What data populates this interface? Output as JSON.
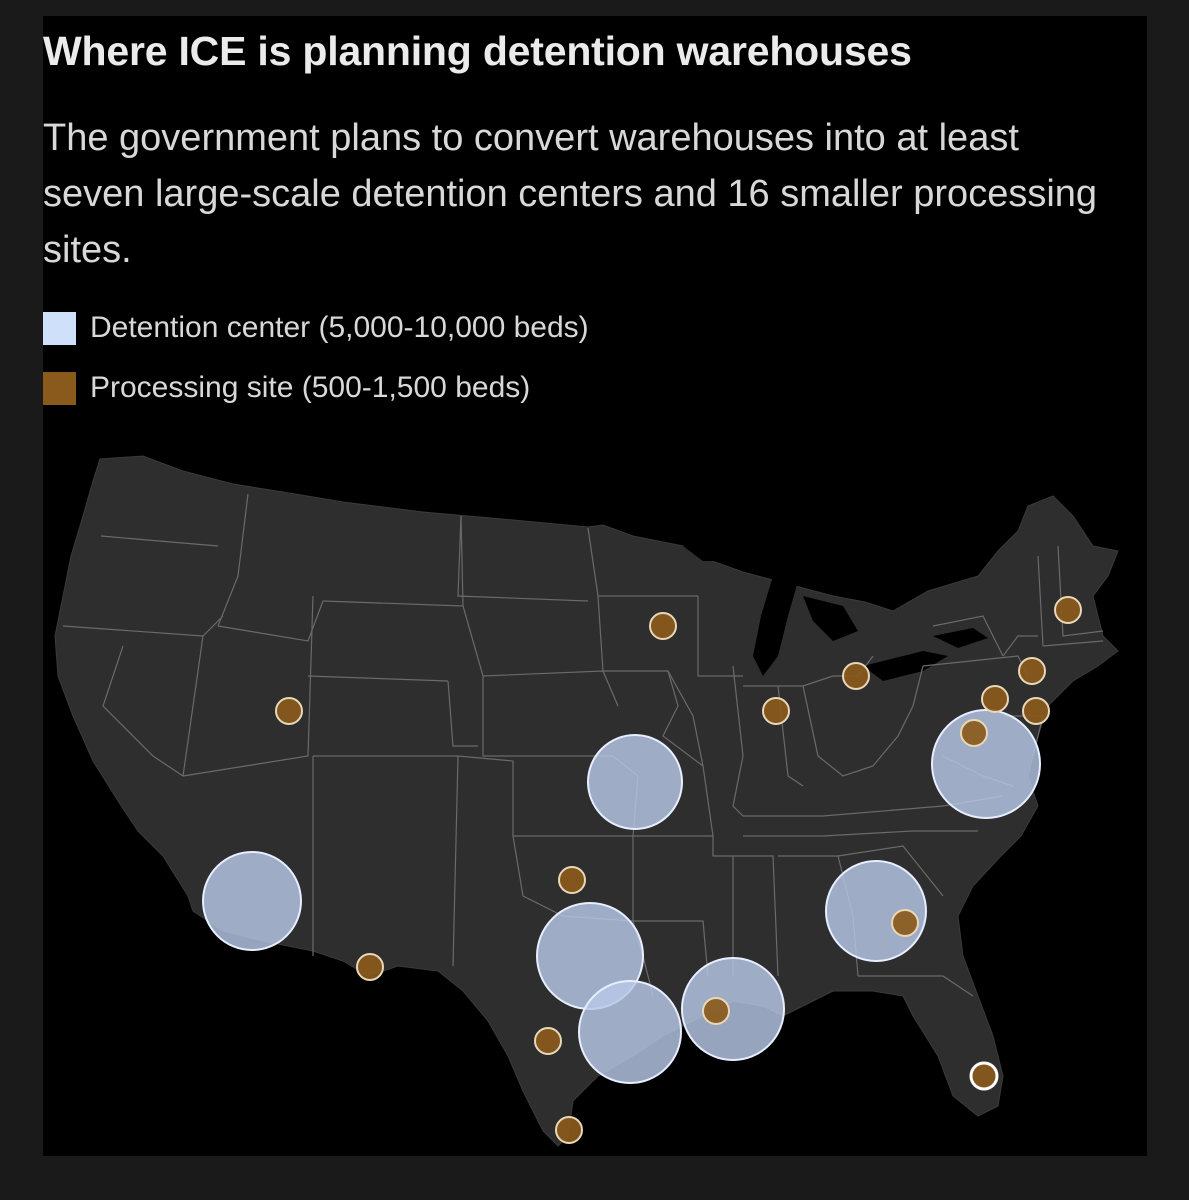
{
  "title": "Where ICE is planning detention warehouses",
  "subtitle": "The government plans to convert warehouses into at least seven large-scale detention centers and 16 smaller processing sites.",
  "legend": [
    {
      "label": "Detention center (5,000-10,000 beds)",
      "color": "#cfe0fb"
    },
    {
      "label": "Processing site (500-1,500 beds)",
      "color": "#8a5a1c"
    }
  ],
  "colors": {
    "background": "#000000",
    "land": "#2e2e2e",
    "state_borders": "#6a6a6a",
    "detention_fill": "#b8c8e8",
    "processing_fill": "#8a5a1c"
  }
}
